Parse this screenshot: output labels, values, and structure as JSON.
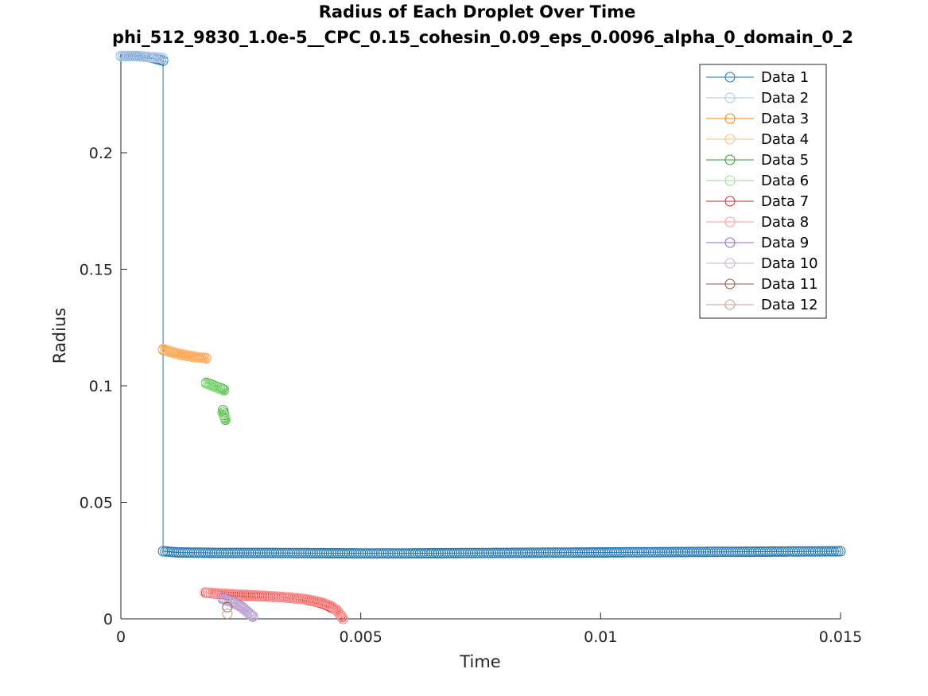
{
  "chart_data": {
    "type": "line",
    "title": "Radius of Each Droplet Over Time",
    "subtitle": "phi_512_9830_1.0e-5__CPC_0.15_cohesin_0.09_eps_0.0096_alpha_0_domain_0_2",
    "xlabel": "Time",
    "ylabel": "Radius",
    "xlim": [
      0,
      0.015
    ],
    "ylim": [
      0,
      0.243
    ],
    "xticks": [
      0,
      0.005,
      0.01,
      0.015
    ],
    "xtick_labels": [
      "0",
      "0.005",
      "0.01",
      "0.015"
    ],
    "yticks": [
      0,
      0.05,
      0.1,
      0.15,
      0.2
    ],
    "ytick_labels": [
      "0",
      "0.05",
      "0.1",
      "0.15",
      "0.2"
    ],
    "grid": false,
    "legend_position": "top-right",
    "marker": "circle",
    "series": [
      {
        "name": "Data 1",
        "color": "#1f77b4",
        "segments": [
          [
            [
              0.0,
              0.2415
            ],
            [
              0.0003,
              0.2415
            ],
            [
              0.0006,
              0.241
            ],
            [
              0.00088,
              0.2395
            ],
            [
              0.00088,
              0.029
            ],
            [
              0.0012,
              0.0285
            ],
            [
              0.002,
              0.0283
            ],
            [
              0.003,
              0.0283
            ],
            [
              0.004,
              0.0282
            ],
            [
              0.005,
              0.0281
            ],
            [
              0.006,
              0.0281
            ],
            [
              0.007,
              0.0282
            ],
            [
              0.008,
              0.0283
            ],
            [
              0.009,
              0.0284
            ],
            [
              0.01,
              0.0285
            ],
            [
              0.011,
              0.0286
            ],
            [
              0.012,
              0.0287
            ],
            [
              0.013,
              0.0288
            ],
            [
              0.014,
              0.0289
            ],
            [
              0.015,
              0.029
            ]
          ]
        ]
      },
      {
        "name": "Data 2",
        "color": "#aec7e8",
        "segments": [
          [
            [
              0.0,
              0.2415
            ],
            [
              0.0002,
              0.2415
            ],
            [
              0.0004,
              0.2413
            ],
            [
              0.0006,
              0.241
            ],
            [
              0.0008,
              0.2408
            ],
            [
              0.00088,
              0.2405
            ]
          ]
        ]
      },
      {
        "name": "Data 3",
        "color": "#ff7f0e",
        "segments": [
          [
            [
              0.00088,
              0.1155
            ],
            [
              0.0011,
              0.1142
            ],
            [
              0.0013,
              0.1132
            ],
            [
              0.0015,
              0.1125
            ],
            [
              0.0017,
              0.112
            ],
            [
              0.00178,
              0.1118
            ]
          ]
        ]
      },
      {
        "name": "Data 4",
        "color": "#ffbb78",
        "segments": [
          [
            [
              0.00088,
              0.1158
            ],
            [
              0.001,
              0.115
            ],
            [
              0.0012,
              0.1138
            ],
            [
              0.0014,
              0.113
            ],
            [
              0.0016,
              0.1123
            ],
            [
              0.00178,
              0.1119
            ]
          ]
        ]
      },
      {
        "name": "Data 5",
        "color": "#2ca02c",
        "segments": [
          [
            [
              0.00178,
              0.1013
            ],
            [
              0.0019,
              0.1003
            ],
            [
              0.002,
              0.0995
            ],
            [
              0.0021,
              0.0987
            ],
            [
              0.00215,
              0.0983
            ]
          ],
          [
            [
              0.00213,
              0.0895
            ],
            [
              0.00215,
              0.0875
            ],
            [
              0.00218,
              0.0855
            ]
          ]
        ]
      },
      {
        "name": "Data 6",
        "color": "#98df8a",
        "segments": [
          [
            [
              0.00178,
              0.101
            ],
            [
              0.0019,
              0.1
            ],
            [
              0.002,
              0.0992
            ],
            [
              0.00215,
              0.098
            ]
          ],
          [
            [
              0.00212,
              0.0885
            ],
            [
              0.00215,
              0.087
            ],
            [
              0.00218,
              0.0858
            ]
          ]
        ]
      },
      {
        "name": "Data 7",
        "color": "#d62728",
        "segments": [
          [
            [
              0.00178,
              0.0112
            ],
            [
              0.0022,
              0.0105
            ],
            [
              0.0028,
              0.0099
            ],
            [
              0.0034,
              0.0093
            ],
            [
              0.0038,
              0.0085
            ],
            [
              0.0041,
              0.0073
            ],
            [
              0.0043,
              0.0058
            ],
            [
              0.0045,
              0.0037
            ],
            [
              0.00458,
              0.0015
            ],
            [
              0.00463,
              0.0
            ]
          ]
        ]
      },
      {
        "name": "Data 8",
        "color": "#ff9896",
        "segments": [
          [
            [
              0.00175,
              0.0113
            ],
            [
              0.002,
              0.011
            ],
            [
              0.0025,
              0.0104
            ],
            [
              0.003,
              0.0099
            ],
            [
              0.0035,
              0.0092
            ],
            [
              0.0039,
              0.0083
            ],
            [
              0.0042,
              0.007
            ],
            [
              0.0044,
              0.0053
            ],
            [
              0.0045,
              0.0035
            ],
            [
              0.0046,
              0.0012
            ],
            [
              0.00463,
              0.0
            ]
          ]
        ]
      },
      {
        "name": "Data 9",
        "color": "#9467bd",
        "segments": [
          [
            [
              0.00212,
              0.0088
            ],
            [
              0.0023,
              0.0074
            ],
            [
              0.0025,
              0.0055
            ],
            [
              0.0026,
              0.0037
            ],
            [
              0.0027,
              0.002
            ],
            [
              0.00275,
              0.001
            ]
          ]
        ]
      },
      {
        "name": "Data 10",
        "color": "#c5b0d5",
        "segments": [
          [
            [
              0.00212,
              0.0085
            ],
            [
              0.0023,
              0.0072
            ],
            [
              0.0025,
              0.0052
            ],
            [
              0.0026,
              0.0035
            ],
            [
              0.0027,
              0.0018
            ],
            [
              0.00275,
              0.0012
            ]
          ]
        ]
      },
      {
        "name": "Data 11",
        "color": "#8c564b",
        "segments": [
          [
            [
              0.00222,
              0.005
            ]
          ]
        ]
      },
      {
        "name": "Data 12",
        "color": "#c49c94",
        "segments": [
          [
            [
              0.00222,
              0.0022
            ]
          ]
        ]
      }
    ]
  }
}
